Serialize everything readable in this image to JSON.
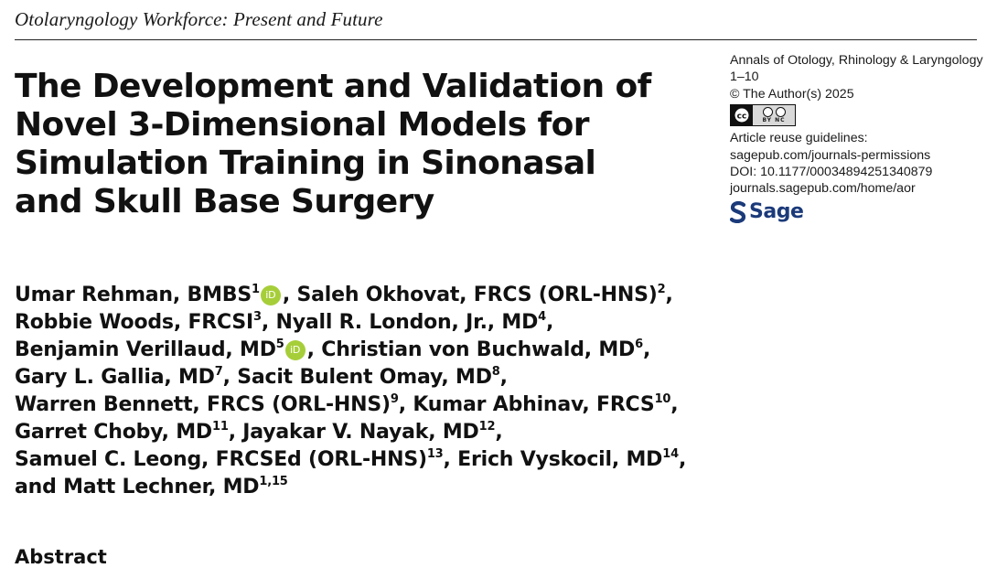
{
  "running_head": "Otolaryngology Workforce: Present and Future",
  "title_lines": [
    "The Development and Validation of",
    "Novel 3-Dimensional Models for",
    "Simulation Training in Sinonasal",
    "and Skull Base Surgery"
  ],
  "journal": {
    "name": "Annals of Otology, Rhinology & Laryngology",
    "pages": "1–10",
    "copyright": "© The Author(s) 2025",
    "license_badge_text": "BY NC",
    "reuse_label": "Article reuse guidelines:",
    "reuse_url": "sagepub.com/journals-permissions",
    "doi": "DOI: 10.1177/00034894251340879",
    "journal_url": "journals.sagepub.com/home/aor",
    "publisher": "Sage",
    "publisher_color": "#1b3a7a",
    "license_icon": "creative-commons-by-nc-icon"
  },
  "orcid": {
    "label": "iD",
    "color": "#a6ce39"
  },
  "authors": {
    "l1": {
      "a": "Umar Rehman, BMBS",
      "a_sup": "1",
      "b": ", Saleh Okhovat, FRCS (ORL-HNS)",
      "b_sup": "2",
      "end": ","
    },
    "l2": {
      "a": "Robbie Woods, FRCSI",
      "a_sup": "3",
      "b": ", Nyall R. London, Jr., MD",
      "b_sup": "4",
      "end": ","
    },
    "l3": {
      "a": "Benjamin Verillaud, MD",
      "a_sup": "5",
      "b": ", Christian von Buchwald, MD",
      "b_sup": "6",
      "end": ","
    },
    "l4": {
      "a": "Gary L. Gallia, MD",
      "a_sup": "7",
      "b": ", Sacit Bulent Omay, MD",
      "b_sup": "8",
      "end": ","
    },
    "l5": {
      "a": "Warren Bennett, FRCS (ORL-HNS)",
      "a_sup": "9",
      "b": ", Kumar Abhinav, FRCS",
      "b_sup": "10",
      "end": ","
    },
    "l6": {
      "a": "Garret Choby, MD",
      "a_sup": "11",
      "b": ", Jayakar V. Nayak, MD",
      "b_sup": "12",
      "end": ","
    },
    "l7": {
      "a": "Samuel C. Leong, FRCSEd (ORL-HNS)",
      "a_sup": "13",
      "b": ", Erich Vyskocil, MD",
      "b_sup": "14",
      "end": ","
    },
    "l8": {
      "a": "and Matt Lechner, MD",
      "a_sup": "1,15"
    }
  },
  "abstract_heading": "Abstract"
}
